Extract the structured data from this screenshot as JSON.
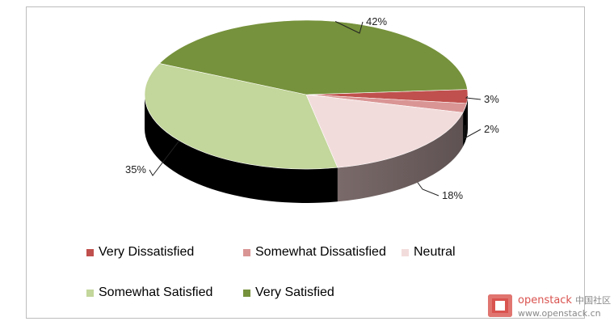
{
  "chart_data": {
    "type": "pie",
    "title": "",
    "legend_position": "bottom",
    "slices": [
      {
        "name": "Very Dissatisfied",
        "value": 3,
        "label": "3%",
        "color": "#c0504d"
      },
      {
        "name": "Somewhat Dissatisfied",
        "value": 2,
        "label": "2%",
        "color": "#d99594"
      },
      {
        "name": "Neutral",
        "value": 18,
        "label": "18%",
        "color": "#f2dcdb"
      },
      {
        "name": "Somewhat Satisfied",
        "value": 35,
        "label": "35%",
        "color": "#c3d69b"
      },
      {
        "name": "Very Satisfied",
        "value": 42,
        "label": "42%",
        "color": "#76923c"
      }
    ]
  },
  "watermark": {
    "brand": "openstack",
    "brand_cn": "中国社区",
    "url": "www.openstack.cn"
  }
}
